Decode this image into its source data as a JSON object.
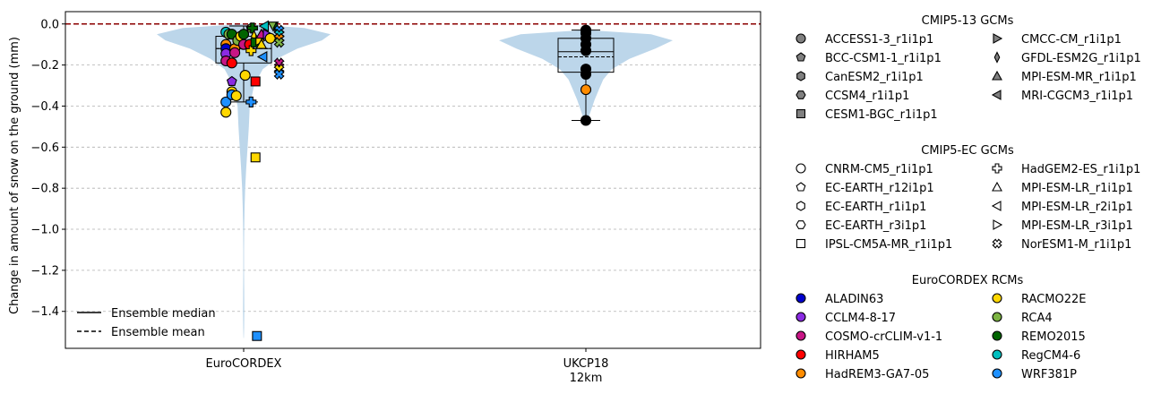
{
  "chart_data": {
    "type": "violin",
    "ylabel": "Change in amount of snow on the ground (mm)",
    "ylim": [
      -1.58,
      0.06
    ],
    "yticks": [
      0.0,
      -0.2,
      -0.4,
      -0.6,
      -0.8,
      -1.0,
      -1.2,
      -1.4
    ],
    "ytick_labels": [
      "0.0",
      "−0.2",
      "−0.4",
      "−0.6",
      "−0.8",
      "−1.0",
      "−1.2",
      "−1.4"
    ],
    "grid": "y-dashed",
    "zero_line_color": "#8b0000",
    "violin_color": "#bcd6ea",
    "categories": [
      {
        "label": "EuroCORDEX",
        "label2": ""
      },
      {
        "label": "UKCP18",
        "label2": "12km"
      }
    ],
    "violins": [
      {
        "category": 0,
        "profile": [
          [
            0.0,
            0.02
          ],
          [
            -0.02,
            0.7
          ],
          [
            -0.05,
            1.0
          ],
          [
            -0.08,
            0.9
          ],
          [
            -0.12,
            0.62
          ],
          [
            -0.17,
            0.38
          ],
          [
            -0.22,
            0.22
          ],
          [
            -0.3,
            0.12
          ],
          [
            -0.4,
            0.07
          ],
          [
            -0.5,
            0.06
          ],
          [
            -0.6,
            0.045
          ],
          [
            -0.7,
            0.03
          ],
          [
            -0.8,
            0.018
          ],
          [
            -0.9,
            0.01
          ],
          [
            -1.0,
            0.006
          ],
          [
            -1.1,
            0.004
          ],
          [
            -1.2,
            0.004
          ],
          [
            -1.3,
            0.006
          ],
          [
            -1.4,
            0.007
          ],
          [
            -1.48,
            0.005
          ],
          [
            -1.53,
            0.002
          ]
        ],
        "box": {
          "q1": -0.19,
          "q3": -0.06,
          "median": -0.12,
          "mean": -0.12,
          "whisker_low": -0.38,
          "whisker_high": -0.01
        }
      },
      {
        "category": 1,
        "profile": [
          [
            -0.03,
            0.02
          ],
          [
            -0.05,
            0.75
          ],
          [
            -0.08,
            1.0
          ],
          [
            -0.12,
            0.8
          ],
          [
            -0.17,
            0.5
          ],
          [
            -0.22,
            0.3
          ],
          [
            -0.27,
            0.2
          ],
          [
            -0.32,
            0.15
          ],
          [
            -0.37,
            0.1
          ],
          [
            -0.42,
            0.06
          ],
          [
            -0.47,
            0.02
          ]
        ],
        "box": {
          "q1": -0.235,
          "q3": -0.07,
          "median": -0.135,
          "mean": -0.16,
          "whisker_low": -0.47,
          "whisker_high": -0.03
        }
      }
    ],
    "points": [
      {
        "cat": 0,
        "dx": -0.06,
        "y": -0.38,
        "marker": "circle",
        "color": "#1e90ff"
      },
      {
        "cat": 0,
        "dx": -0.06,
        "y": -0.43,
        "marker": "circle",
        "color": "#ffd700"
      },
      {
        "cat": 0,
        "dx": -0.06,
        "y": -0.04,
        "marker": "circle",
        "color": "#00bfbf"
      },
      {
        "cat": 0,
        "dx": -0.06,
        "y": -0.1,
        "marker": "circle",
        "color": "#ff8c00"
      },
      {
        "cat": 0,
        "dx": -0.06,
        "y": -0.12,
        "marker": "circle",
        "color": "#0000cd"
      },
      {
        "cat": 0,
        "dx": -0.06,
        "y": -0.145,
        "marker": "circle",
        "color": "#8a2be2"
      },
      {
        "cat": 0,
        "dx": -0.06,
        "y": -0.18,
        "marker": "circle",
        "color": "#c71585"
      },
      {
        "cat": 0,
        "dx": -0.05,
        "y": -0.05,
        "marker": "circle",
        "color": "#7cb342"
      },
      {
        "cat": 0,
        "dx": -0.04,
        "y": -0.05,
        "marker": "circle",
        "color": "#006400"
      },
      {
        "cat": 0,
        "dx": -0.04,
        "y": -0.19,
        "marker": "circle",
        "color": "#ff0000"
      },
      {
        "cat": 0,
        "dx": -0.04,
        "y": -0.33,
        "marker": "circle",
        "color": "#ffd700"
      },
      {
        "cat": 0,
        "dx": -0.04,
        "y": -0.345,
        "marker": "circle",
        "color": "#1e90ff"
      },
      {
        "cat": 0,
        "dx": -0.03,
        "y": -0.12,
        "marker": "circle",
        "color": "#ff8c00"
      },
      {
        "cat": 0,
        "dx": -0.03,
        "y": -0.14,
        "marker": "circle",
        "color": "#c71585"
      },
      {
        "cat": 0,
        "dx": -0.025,
        "y": -0.35,
        "marker": "circle",
        "color": "#ffd700"
      },
      {
        "cat": 0,
        "dx": -0.02,
        "y": -0.08,
        "marker": "circle",
        "color": "#7cb342"
      },
      {
        "cat": 0,
        "dx": -0.01,
        "y": -0.06,
        "marker": "circle",
        "color": "#ffd700"
      },
      {
        "cat": 0,
        "dx": 0.0,
        "y": -0.05,
        "marker": "circle",
        "color": "#006400"
      },
      {
        "cat": 0,
        "dx": 0.0,
        "y": -0.1,
        "marker": "circle",
        "color": "#c71585"
      },
      {
        "cat": 0,
        "dx": 0.005,
        "y": -0.25,
        "marker": "circle",
        "color": "#ffd700"
      },
      {
        "cat": 0,
        "dx": -0.04,
        "y": -0.28,
        "marker": "pentagon",
        "color": "#8a2be2"
      },
      {
        "cat": 0,
        "dx": 0.02,
        "y": -0.1,
        "marker": "circle",
        "color": "#ff0000"
      },
      {
        "cat": 0,
        "dx": 0.025,
        "y": -0.02,
        "marker": "pentagon",
        "color": "#7cb342"
      },
      {
        "cat": 0,
        "dx": 0.025,
        "y": -0.13,
        "marker": "plus",
        "color": "#ffd700"
      },
      {
        "cat": 0,
        "dx": 0.03,
        "y": -0.02,
        "marker": "plus",
        "color": "#006400"
      },
      {
        "cat": 0,
        "dx": 0.035,
        "y": -0.06,
        "marker": "diamond",
        "color": "#ffd700"
      },
      {
        "cat": 0,
        "dx": 0.04,
        "y": -0.09,
        "marker": "square",
        "color": "#006400"
      },
      {
        "cat": 0,
        "dx": 0.04,
        "y": -0.28,
        "marker": "square",
        "color": "#ff0000"
      },
      {
        "cat": 0,
        "dx": 0.04,
        "y": -0.65,
        "marker": "square",
        "color": "#ffd700"
      },
      {
        "cat": 0,
        "dx": 0.045,
        "y": -1.52,
        "marker": "square",
        "color": "#1e90ff"
      },
      {
        "cat": 0,
        "dx": 0.025,
        "y": -0.38,
        "marker": "plus",
        "color": "#1e90ff"
      },
      {
        "cat": 0,
        "dx": 0.055,
        "y": -0.08,
        "marker": "tri_right",
        "color": "#ffd700"
      },
      {
        "cat": 0,
        "dx": 0.06,
        "y": -0.05,
        "marker": "tri_up",
        "color": "#c71585"
      },
      {
        "cat": 0,
        "dx": 0.06,
        "y": -0.1,
        "marker": "tri_up",
        "color": "#ffd700"
      },
      {
        "cat": 0,
        "dx": 0.065,
        "y": -0.16,
        "marker": "tri_left",
        "color": "#1e90ff"
      },
      {
        "cat": 0,
        "dx": 0.07,
        "y": -0.01,
        "marker": "tri_left",
        "color": "#00bfbf"
      },
      {
        "cat": 0,
        "dx": 0.08,
        "y": -0.05,
        "marker": "tri_right",
        "color": "#8a2be2"
      },
      {
        "cat": 0,
        "dx": 0.09,
        "y": -0.07,
        "marker": "circle",
        "color": "#ffd700"
      },
      {
        "cat": 0,
        "dx": 0.1,
        "y": -0.01,
        "marker": "tri_down",
        "color": "#7cb342"
      },
      {
        "cat": 0,
        "dx": 0.11,
        "y": -0.02,
        "marker": "diamond",
        "color": "#006400"
      },
      {
        "cat": 0,
        "dx": 0.12,
        "y": -0.03,
        "marker": "cross",
        "color": "#1e90ff"
      },
      {
        "cat": 0,
        "dx": 0.12,
        "y": -0.05,
        "marker": "cross",
        "color": "#00bfbf"
      },
      {
        "cat": 0,
        "dx": 0.12,
        "y": -0.07,
        "marker": "cross",
        "color": "#ff8c00"
      },
      {
        "cat": 0,
        "dx": 0.12,
        "y": -0.09,
        "marker": "cross",
        "color": "#7cb342"
      },
      {
        "cat": 0,
        "dx": 0.12,
        "y": -0.19,
        "marker": "cross",
        "color": "#c71585"
      },
      {
        "cat": 0,
        "dx": 0.12,
        "y": -0.22,
        "marker": "cross",
        "color": "#ffd700"
      },
      {
        "cat": 0,
        "dx": 0.12,
        "y": -0.245,
        "marker": "cross",
        "color": "#1e90ff"
      },
      {
        "cat": 1,
        "dx": 0.0,
        "y": -0.03,
        "marker": "circle",
        "color": "#000000"
      },
      {
        "cat": 1,
        "dx": 0.0,
        "y": -0.045,
        "marker": "circle",
        "color": "#000000"
      },
      {
        "cat": 1,
        "dx": 0.0,
        "y": -0.07,
        "marker": "circle",
        "color": "#000000"
      },
      {
        "cat": 1,
        "dx": 0.0,
        "y": -0.1,
        "marker": "circle",
        "color": "#000000"
      },
      {
        "cat": 1,
        "dx": 0.0,
        "y": -0.13,
        "marker": "circle",
        "color": "#000000"
      },
      {
        "cat": 1,
        "dx": 0.0,
        "y": -0.22,
        "marker": "circle",
        "color": "#000000"
      },
      {
        "cat": 1,
        "dx": 0.0,
        "y": -0.245,
        "marker": "circle",
        "color": "#000000"
      },
      {
        "cat": 1,
        "dx": 0.0,
        "y": -0.32,
        "marker": "circle",
        "color": "#ff8c00"
      },
      {
        "cat": 1,
        "dx": 0.0,
        "y": -0.47,
        "marker": "circle",
        "color": "#000000"
      }
    ],
    "inner_legend": [
      {
        "label": "Ensemble median",
        "style": "solid"
      },
      {
        "label": "Ensemble mean",
        "style": "dashed"
      }
    ]
  },
  "legend": {
    "groups": [
      {
        "title": "CMIP5-13 GCMs",
        "fill": "#808080",
        "entries": [
          {
            "label": "ACCESS1-3_r1i1p1",
            "marker": "circle"
          },
          {
            "label": "BCC-CSM1-1_r1i1p1",
            "marker": "pentagon"
          },
          {
            "label": "CanESM2_r1i1p1",
            "marker": "hexagon"
          },
          {
            "label": "CCSM4_r1i1p1",
            "marker": "hexagon2"
          },
          {
            "label": "CESM1-BGC_r1i1p1",
            "marker": "square"
          },
          {
            "label": "CMCC-CM_r1i1p1",
            "marker": "tri_right"
          },
          {
            "label": "GFDL-ESM2G_r1i1p1",
            "marker": "diamond"
          },
          {
            "label": "MPI-ESM-MR_r1i1p1",
            "marker": "tri_up"
          },
          {
            "label": "MRI-CGCM3_r1i1p1",
            "marker": "tri_left"
          }
        ]
      },
      {
        "title": "CMIP5-EC GCMs",
        "fill": "#ffffff",
        "entries": [
          {
            "label": "CNRM-CM5_r1i1p1",
            "marker": "circle"
          },
          {
            "label": "EC-EARTH_r12i1p1",
            "marker": "pentagon"
          },
          {
            "label": "EC-EARTH_r1i1p1",
            "marker": "hexagon"
          },
          {
            "label": "EC-EARTH_r3i1p1",
            "marker": "hexagon2"
          },
          {
            "label": "IPSL-CM5A-MR_r1i1p1",
            "marker": "square"
          },
          {
            "label": "HadGEM2-ES_r1i1p1",
            "marker": "plus"
          },
          {
            "label": "MPI-ESM-LR_r1i1p1",
            "marker": "tri_up"
          },
          {
            "label": "MPI-ESM-LR_r2i1p1",
            "marker": "tri_left"
          },
          {
            "label": "MPI-ESM-LR_r3i1p1",
            "marker": "tri_right"
          },
          {
            "label": "NorESM1-M_r1i1p1",
            "marker": "cross"
          }
        ]
      },
      {
        "title": "EuroCORDEX RCMs",
        "entries": [
          {
            "label": "ALADIN63",
            "marker": "circle",
            "color": "#0000cd"
          },
          {
            "label": "CCLM4-8-17",
            "marker": "circle",
            "color": "#8a2be2"
          },
          {
            "label": "COSMO-crCLIM-v1-1",
            "marker": "circle",
            "color": "#c71585"
          },
          {
            "label": "HIRHAM5",
            "marker": "circle",
            "color": "#ff0000"
          },
          {
            "label": "HadREM3-GA7-05",
            "marker": "circle",
            "color": "#ff8c00"
          },
          {
            "label": "RACMO22E",
            "marker": "circle",
            "color": "#ffd700"
          },
          {
            "label": "RCA4",
            "marker": "circle",
            "color": "#7cb342"
          },
          {
            "label": "REMO2015",
            "marker": "circle",
            "color": "#006400"
          },
          {
            "label": "RegCM4-6",
            "marker": "circle",
            "color": "#00bfbf"
          },
          {
            "label": "WRF381P",
            "marker": "circle",
            "color": "#1e90ff"
          }
        ]
      }
    ]
  }
}
